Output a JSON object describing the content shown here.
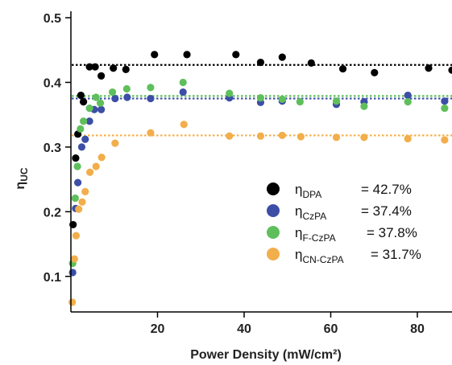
{
  "chart_data": {
    "type": "scatter",
    "xlabel": "Power Density (mW/cm²)",
    "ylabel": "ηUC",
    "xlim": [
      0,
      88
    ],
    "ylim": [
      0.045,
      0.51
    ],
    "x_ticks": [
      {
        "value": 20,
        "label": "20"
      },
      {
        "value": 40,
        "label": "40"
      },
      {
        "value": 60,
        "label": "60"
      },
      {
        "value": 80,
        "label": "80"
      }
    ],
    "y_ticks": [
      {
        "value": 0.1,
        "label": "0.1"
      },
      {
        "value": 0.2,
        "label": "0.2"
      },
      {
        "value": 0.3,
        "label": "0.3"
      },
      {
        "value": 0.4,
        "label": "0.4"
      },
      {
        "value": 0.5,
        "label": "0.5"
      }
    ],
    "grid": false,
    "legend_position": "bottom-right",
    "series": [
      {
        "key": "dpa",
        "symbol": "η",
        "subscript": "DPA",
        "value_label": "= 42.7%",
        "color": "#000000",
        "fit": 0.427,
        "points": [
          [
            0.5,
            0.18
          ],
          [
            1.1,
            0.283
          ],
          [
            1.6,
            0.32
          ],
          [
            2.3,
            0.38
          ],
          [
            2.9,
            0.37
          ],
          [
            4.3,
            0.424
          ],
          [
            5.6,
            0.424
          ],
          [
            7.0,
            0.41
          ],
          [
            9.8,
            0.422
          ],
          [
            12.7,
            0.42
          ],
          [
            19.3,
            0.443
          ],
          [
            26.8,
            0.443
          ],
          [
            38.1,
            0.443
          ],
          [
            43.8,
            0.431
          ],
          [
            48.8,
            0.439
          ],
          [
            55.5,
            0.43
          ],
          [
            62.8,
            0.421
          ],
          [
            70.1,
            0.415
          ],
          [
            82.6,
            0.422
          ],
          [
            88.0,
            0.419
          ]
        ]
      },
      {
        "key": "czpa",
        "symbol": "η",
        "subscript": "CzPA",
        "value_label": "= 37.4%",
        "color": "#3c4ea6",
        "fit": 0.375,
        "points": [
          [
            0.4,
            0.106
          ],
          [
            1.1,
            0.205
          ],
          [
            1.6,
            0.245
          ],
          [
            2.5,
            0.3
          ],
          [
            3.3,
            0.312
          ],
          [
            4.3,
            0.34
          ],
          [
            5.4,
            0.358
          ],
          [
            7.0,
            0.358
          ],
          [
            10.2,
            0.375
          ],
          [
            13.0,
            0.377
          ],
          [
            18.4,
            0.375
          ],
          [
            25.9,
            0.385
          ],
          [
            36.6,
            0.376
          ],
          [
            43.8,
            0.369
          ],
          [
            48.8,
            0.371
          ],
          [
            61.3,
            0.366
          ],
          [
            67.7,
            0.37
          ],
          [
            77.8,
            0.38
          ],
          [
            86.3,
            0.371
          ]
        ]
      },
      {
        "key": "fczpa",
        "symbol": "η",
        "subscript": "F-CzPA",
        "value_label": "= 37.8%",
        "color": "#5fbf5b",
        "fit": 0.379,
        "points": [
          [
            0.4,
            0.12
          ],
          [
            1.0,
            0.221
          ],
          [
            1.5,
            0.27
          ],
          [
            2.2,
            0.328
          ],
          [
            2.9,
            0.34
          ],
          [
            4.3,
            0.36
          ],
          [
            5.8,
            0.377
          ],
          [
            6.8,
            0.368
          ],
          [
            9.6,
            0.385
          ],
          [
            12.9,
            0.39
          ],
          [
            18.4,
            0.392
          ],
          [
            25.9,
            0.4
          ],
          [
            36.6,
            0.383
          ],
          [
            43.8,
            0.376
          ],
          [
            48.8,
            0.374
          ],
          [
            52.9,
            0.37
          ],
          [
            61.3,
            0.371
          ],
          [
            67.7,
            0.363
          ],
          [
            77.8,
            0.37
          ],
          [
            86.3,
            0.36
          ]
        ]
      },
      {
        "key": "cnczpa",
        "symbol": "η",
        "subscript": "CN-CzPA",
        "value_label": "= 31.7%",
        "color": "#f2ae4b",
        "fit": 0.318,
        "points": [
          [
            0.3,
            0.06
          ],
          [
            0.8,
            0.127
          ],
          [
            1.2,
            0.163
          ],
          [
            1.8,
            0.204
          ],
          [
            2.6,
            0.215
          ],
          [
            3.3,
            0.231
          ],
          [
            4.4,
            0.261
          ],
          [
            5.8,
            0.27
          ],
          [
            7.1,
            0.284
          ],
          [
            10.2,
            0.306
          ],
          [
            18.4,
            0.322
          ],
          [
            26.1,
            0.335
          ],
          [
            36.6,
            0.317
          ],
          [
            43.8,
            0.317
          ],
          [
            48.8,
            0.318
          ],
          [
            53.1,
            0.316
          ],
          [
            61.3,
            0.315
          ],
          [
            67.7,
            0.315
          ],
          [
            77.8,
            0.313
          ],
          [
            86.3,
            0.311
          ]
        ]
      }
    ]
  }
}
